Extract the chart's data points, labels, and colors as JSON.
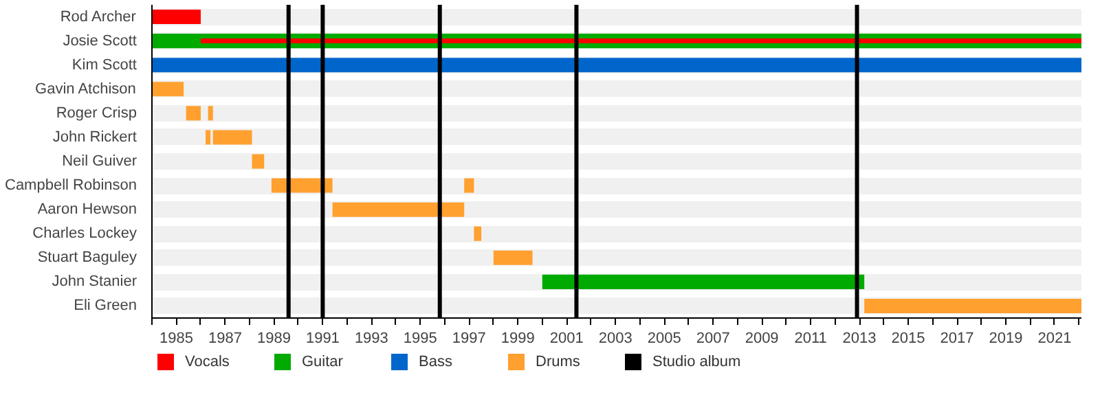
{
  "chart_data": {
    "type": "bar",
    "orientation": "horizontal",
    "categories": [
      "Rod Archer",
      "Josie Scott",
      "Kim Scott",
      "Gavin Atchison",
      "Roger Crisp",
      "John Rickert",
      "Neil Guiver",
      "Campbell Robinson",
      "Aaron Hewson",
      "Charles Lockey",
      "Stuart Baguley",
      "John Stanier",
      "Eli Green"
    ],
    "series": [
      {
        "name": "Guitar",
        "color": "#00aa00",
        "base": [
          null,
          1984.0,
          null,
          null,
          null,
          null,
          null,
          null,
          null,
          null,
          null,
          2000.0,
          null
        ],
        "values": [
          null,
          38.1,
          null,
          null,
          null,
          null,
          null,
          null,
          null,
          null,
          null,
          13.2,
          null
        ]
      },
      {
        "name": "Vocals",
        "color": "#ff0000",
        "base": [
          1984.0,
          1986.0,
          null,
          null,
          null,
          null,
          null,
          null,
          null,
          null,
          null,
          null,
          null
        ],
        "values": [
          2.0,
          36.1,
          null,
          null,
          null,
          null,
          null,
          null,
          null,
          null,
          null,
          null,
          null
        ]
      },
      {
        "name": "Bass",
        "color": "#0066cc",
        "base": [
          null,
          null,
          1984.0,
          null,
          null,
          null,
          null,
          null,
          null,
          null,
          null,
          null,
          null
        ],
        "values": [
          null,
          null,
          38.1,
          null,
          null,
          null,
          null,
          null,
          null,
          null,
          null,
          null,
          null
        ]
      },
      {
        "name": "Drums",
        "color": "#ffa02f",
        "base": [
          null,
          null,
          null,
          1984.0,
          1985.4,
          1986.2,
          1988.1,
          1988.9,
          1991.4,
          1997.2,
          1998.0,
          null,
          2013.2
        ],
        "values": [
          null,
          null,
          null,
          1.3,
          0.6,
          0.2,
          0.5,
          2.5,
          5.4,
          0.3,
          1.6,
          null,
          8.9
        ]
      },
      {
        "color": "#ffa02f",
        "base": [
          null,
          null,
          null,
          null,
          1986.3,
          1986.5,
          null,
          1996.8,
          null,
          null,
          null,
          null,
          null
        ],
        "values": [
          null,
          null,
          null,
          null,
          0.2,
          1.6,
          null,
          0.4,
          null,
          null,
          null,
          null,
          null
        ]
      }
    ],
    "ref_lines": [
      {
        "axis": "x",
        "value": 1989.6,
        "label": "Studio album",
        "color": "#000000"
      },
      {
        "axis": "x",
        "value": 1991.0,
        "color": "#000000"
      },
      {
        "axis": "x",
        "value": 1995.8,
        "color": "#000000"
      },
      {
        "axis": "x",
        "value": 2001.4,
        "color": "#000000"
      },
      {
        "axis": "x",
        "value": 2012.9,
        "color": "#000000"
      }
    ],
    "xlim": [
      1984.0,
      2022.1
    ],
    "xticks": [
      {
        "value": 1984,
        "label": null
      },
      1985,
      {
        "value": 1986,
        "label": null
      },
      1987,
      {
        "value": 1988,
        "label": null
      },
      1989,
      {
        "value": 1990,
        "label": null
      },
      1991,
      {
        "value": 1992,
        "label": null
      },
      1993,
      {
        "value": 1994,
        "label": null
      },
      1995,
      {
        "value": 1996,
        "label": null
      },
      1997,
      {
        "value": 1998,
        "label": null
      },
      1999,
      {
        "value": 2000,
        "label": null
      },
      2001,
      {
        "value": 2002,
        "label": null
      },
      2003,
      {
        "value": 2004,
        "label": null
      },
      2005,
      {
        "value": 2006,
        "label": null
      },
      2007,
      {
        "value": 2008,
        "label": null
      },
      2009,
      {
        "value": 2010,
        "label": null
      },
      2011,
      {
        "value": 2012,
        "label": null
      },
      2013,
      {
        "value": 2014,
        "label": null
      },
      2015,
      {
        "value": 2016,
        "label": null
      },
      2017,
      {
        "value": 2018,
        "label": null
      },
      2019,
      {
        "value": 2020,
        "label": null
      },
      2021,
      {
        "value": 2022,
        "label": null
      }
    ],
    "grid": "y",
    "legend": "bottom"
  }
}
